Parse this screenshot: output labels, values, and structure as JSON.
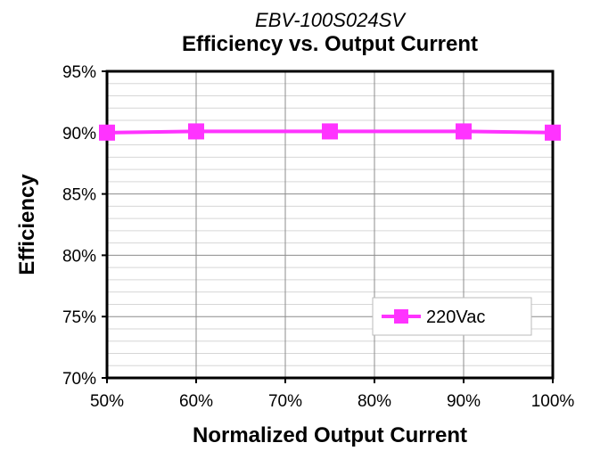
{
  "chart_data": {
    "type": "line",
    "subtitle": "EBV-100S024SV",
    "title": "Efficiency vs. Output Current",
    "xlabel": "Normalized Output Current",
    "ylabel": "Efficiency",
    "xlim": [
      50,
      100
    ],
    "ylim": [
      70,
      95
    ],
    "x_ticks": [
      "50%",
      "60%",
      "70%",
      "80%",
      "90%",
      "100%"
    ],
    "x_tick_values": [
      50,
      60,
      70,
      80,
      90,
      100
    ],
    "y_ticks": [
      "70%",
      "75%",
      "80%",
      "85%",
      "90%",
      "95%"
    ],
    "y_tick_values": [
      70,
      75,
      80,
      85,
      90,
      95
    ],
    "grid": true,
    "legend_position": "bottom-right",
    "series": [
      {
        "name": "220Vac",
        "color": "#ff33ff",
        "marker": "square",
        "x": [
          50,
          60,
          75,
          90,
          100
        ],
        "y": [
          90.0,
          90.1,
          90.1,
          90.1,
          90.0
        ]
      }
    ]
  }
}
